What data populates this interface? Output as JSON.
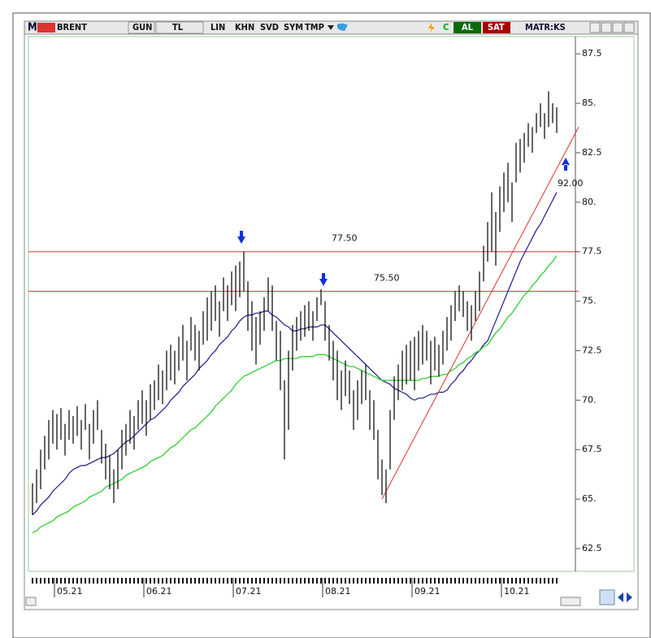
{
  "toolbar": {
    "logo": "M",
    "symbol": "BRENT",
    "period": "GUN",
    "currency": "TL",
    "buttons": [
      "LIN",
      "KHN",
      "SVD",
      "SYM",
      "TMP"
    ],
    "c": "C",
    "buy": "AL",
    "sell": "SAT",
    "brand": "MATR:KS"
  },
  "chart_data": {
    "type": "ohlc",
    "categories": [
      null,
      null,
      null,
      null,
      null,
      null,
      "05.21",
      null,
      null,
      null,
      null,
      null,
      null,
      null,
      null,
      null,
      null,
      null,
      null,
      null,
      null,
      null,
      null,
      null,
      null,
      null,
      null,
      null,
      "06.21",
      null,
      null,
      null,
      null,
      null,
      null,
      null,
      null,
      null,
      null,
      null,
      null,
      null,
      null,
      null,
      null,
      null,
      null,
      null,
      null,
      null,
      "07.21",
      null,
      null,
      null,
      null,
      null,
      null,
      null,
      null,
      null,
      null,
      null,
      null,
      null,
      null,
      null,
      null,
      null,
      null,
      null,
      null,
      null,
      "08.21",
      null,
      null,
      null,
      null,
      null,
      null,
      null,
      null,
      null,
      null,
      null,
      null,
      null,
      null,
      null,
      null,
      null,
      null,
      null,
      null,
      null,
      "09.21",
      null,
      null,
      null,
      null,
      null,
      null,
      null,
      null,
      null,
      null,
      null,
      null,
      null,
      null,
      null,
      null,
      null,
      null,
      null,
      null,
      null,
      "10.21",
      null,
      null,
      null,
      null,
      null,
      null,
      null,
      null,
      null,
      null,
      null,
      null,
      null
    ],
    "high": [
      65.8,
      66.5,
      67.5,
      68.2,
      69.0,
      69.5,
      69.3,
      69.6,
      68.8,
      69.5,
      69.2,
      69.7,
      69.0,
      69.8,
      68.8,
      69.5,
      70.0,
      68.5,
      67.8,
      67.2,
      66.5,
      67.5,
      68.5,
      68.8,
      69.5,
      69.2,
      70.0,
      70.5,
      70.0,
      70.8,
      71.0,
      71.8,
      71.5,
      72.5,
      72.8,
      72.5,
      73.2,
      73.8,
      73.0,
      74.2,
      73.8,
      73.5,
      74.5,
      75.2,
      75.5,
      75.8,
      75.0,
      76.2,
      75.8,
      76.5,
      76.8,
      77.0,
      77.5,
      76.0,
      75.0,
      74.2,
      74.5,
      75.2,
      76.2,
      75.8,
      74.0,
      73.5,
      71.0,
      72.5,
      73.8,
      74.2,
      74.5,
      74.8,
      75.0,
      74.5,
      75.2,
      75.6,
      75.0,
      73.8,
      73.0,
      72.5,
      71.5,
      72.0,
      71.5,
      70.5,
      71.0,
      71.5,
      71.8,
      70.5,
      70.0,
      68.5,
      67.0,
      66.5,
      69.5,
      71.2,
      71.8,
      72.5,
      72.8,
      73.0,
      73.2,
      73.5,
      73.8,
      73.5,
      73.0,
      73.2,
      72.8,
      73.5,
      74.2,
      74.8,
      75.5,
      75.8,
      75.5,
      75.0,
      74.8,
      75.5,
      76.5,
      77.8,
      79.0,
      80.5,
      79.5,
      80.8,
      81.5,
      82.0,
      81.0,
      83.0,
      83.2,
      83.5,
      84.0,
      83.8,
      84.5,
      85.0,
      84.5,
      85.6,
      85.0,
      84.8
    ],
    "low": [
      64.2,
      64.8,
      65.5,
      66.5,
      67.0,
      67.8,
      67.5,
      68.0,
      67.2,
      68.0,
      67.8,
      68.2,
      67.5,
      68.5,
      67.0,
      67.8,
      68.5,
      66.8,
      66.0,
      65.5,
      64.8,
      65.5,
      66.5,
      67.2,
      67.8,
      67.5,
      68.5,
      68.8,
      68.2,
      69.0,
      69.5,
      70.0,
      69.8,
      70.5,
      71.0,
      70.8,
      71.5,
      72.0,
      71.0,
      72.5,
      72.0,
      71.5,
      72.8,
      73.0,
      73.5,
      74.0,
      73.2,
      74.5,
      74.0,
      74.8,
      74.5,
      75.2,
      75.5,
      73.5,
      72.5,
      71.8,
      72.8,
      73.5,
      74.5,
      73.5,
      72.0,
      70.5,
      67.0,
      68.5,
      71.5,
      72.5,
      73.0,
      73.2,
      73.5,
      73.0,
      74.0,
      74.8,
      73.0,
      72.0,
      71.0,
      70.0,
      69.5,
      70.2,
      69.8,
      68.5,
      69.0,
      69.8,
      70.0,
      68.5,
      68.0,
      66.0,
      65.2,
      64.8,
      66.5,
      69.0,
      70.0,
      70.5,
      70.8,
      71.0,
      70.5,
      71.5,
      71.8,
      72.0,
      70.8,
      71.5,
      71.2,
      71.8,
      72.5,
      73.0,
      74.0,
      74.5,
      74.2,
      73.5,
      73.0,
      74.0,
      74.5,
      76.0,
      77.0,
      77.5,
      76.8,
      78.5,
      79.5,
      80.0,
      79.0,
      81.0,
      81.5,
      82.0,
      82.8,
      82.5,
      83.5,
      83.8,
      83.2,
      83.8,
      84.0,
      83.5
    ],
    "color": "#000000",
    "series": [
      {
        "color": "#1a1a8c",
        "values": [
          64.2,
          64.4,
          64.7,
          64.9,
          65.1,
          65.4,
          65.6,
          65.8,
          66.0,
          66.3,
          66.5,
          66.6,
          66.7,
          66.7,
          66.8,
          66.9,
          67.0,
          67.1,
          67.1,
          67.2,
          67.3,
          67.5,
          67.7,
          67.9,
          68.0,
          68.2,
          68.4,
          68.6,
          68.8,
          69.0,
          69.1,
          69.3,
          69.5,
          69.7,
          70.0,
          70.2,
          70.4,
          70.7,
          70.9,
          71.1,
          71.3,
          71.6,
          71.8,
          72.0,
          72.3,
          72.5,
          72.8,
          73.0,
          73.2,
          73.5,
          73.7,
          74.0,
          74.2,
          74.3,
          74.3,
          74.4,
          74.4,
          74.5,
          74.5,
          74.3,
          74.2,
          74.0,
          73.8,
          73.7,
          73.5,
          73.5,
          73.6,
          73.6,
          73.7,
          73.7,
          73.7,
          73.8,
          73.8,
          73.6,
          73.4,
          73.2,
          73.0,
          72.8,
          72.6,
          72.4,
          72.2,
          72.0,
          71.8,
          71.6,
          71.4,
          71.2,
          71.0,
          70.9,
          70.8,
          70.6,
          70.5,
          70.4,
          70.3,
          70.1,
          70.0,
          70.1,
          70.1,
          70.2,
          70.3,
          70.3,
          70.4,
          70.4,
          70.5,
          70.8,
          71.0,
          71.3,
          71.5,
          71.8,
          72.0,
          72.3,
          72.5,
          72.8,
          73.0,
          73.5,
          74.0,
          74.5,
          75.0,
          75.5,
          76.0,
          76.5,
          77.0,
          77.4,
          77.8,
          78.2,
          78.6,
          78.9,
          79.3,
          79.7,
          80.1,
          80.5
        ]
      },
      {
        "color": "#22cc22",
        "values": [
          63.3,
          63.4,
          63.6,
          63.7,
          63.8,
          63.9,
          64.1,
          64.2,
          64.3,
          64.4,
          64.6,
          64.7,
          64.8,
          64.9,
          65.1,
          65.2,
          65.3,
          65.4,
          65.6,
          65.7,
          65.8,
          65.9,
          66.0,
          66.2,
          66.3,
          66.4,
          66.5,
          66.6,
          66.7,
          66.9,
          67.0,
          67.1,
          67.2,
          67.4,
          67.6,
          67.7,
          67.9,
          68.1,
          68.3,
          68.5,
          68.6,
          68.8,
          69.0,
          69.2,
          69.4,
          69.7,
          69.9,
          70.1,
          70.3,
          70.5,
          70.8,
          71.0,
          71.2,
          71.3,
          71.4,
          71.5,
          71.6,
          71.7,
          71.8,
          71.9,
          72.0,
          72.0,
          72.1,
          72.1,
          72.1,
          72.1,
          72.2,
          72.2,
          72.2,
          72.2,
          72.3,
          72.3,
          72.3,
          72.2,
          72.1,
          72.0,
          71.9,
          71.8,
          71.7,
          71.7,
          71.6,
          71.5,
          71.4,
          71.3,
          71.2,
          71.1,
          71.0,
          71.0,
          71.0,
          71.0,
          71.0,
          71.0,
          71.0,
          71.0,
          71.0,
          71.0,
          71.1,
          71.1,
          71.2,
          71.2,
          71.2,
          71.3,
          71.3,
          71.5,
          71.6,
          71.8,
          71.9,
          72.1,
          72.2,
          72.4,
          72.5,
          72.7,
          72.8,
          73.1,
          73.4,
          73.6,
          73.9,
          74.2,
          74.4,
          74.7,
          75.0,
          75.3,
          75.5,
          75.8,
          76.0,
          76.3,
          76.5,
          76.8,
          77.0,
          77.3
        ]
      }
    ],
    "hlines": [
      {
        "value": 77.5,
        "label": "77.50",
        "color": "#e03030"
      },
      {
        "value": 75.5,
        "label": "75.50",
        "color": "#e03030"
      }
    ],
    "trend_line": {
      "values": [
        65.0,
        83.8
      ],
      "color": "#e03030"
    },
    "annotation": "92.00",
    "ylim": [
      61.35,
      88.37
    ],
    "yticks": [
      62.5,
      {
        "value": 65,
        "label": "65."
      },
      67.5,
      {
        "value": 70,
        "label": "70."
      },
      72.5,
      {
        "value": 75,
        "label": "75."
      },
      77.5,
      {
        "value": 80,
        "label": "80."
      },
      82.5,
      {
        "value": 85,
        "label": "85."
      },
      87.5
    ]
  }
}
